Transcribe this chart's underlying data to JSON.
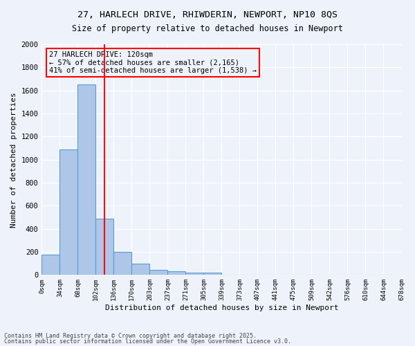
{
  "title_line1": "27, HARLECH DRIVE, RHIWDERIN, NEWPORT, NP10 8QS",
  "title_line2": "Size of property relative to detached houses in Newport",
  "xlabel": "Distribution of detached houses by size in Newport",
  "ylabel": "Number of detached properties",
  "bar_values": [
    175,
    1090,
    1650,
    490,
    200,
    100,
    45,
    35,
    20,
    20,
    5,
    0,
    0,
    0,
    0,
    0,
    0,
    0,
    0,
    0
  ],
  "bar_labels": [
    "0sqm",
    "34sqm",
    "68sqm",
    "102sqm",
    "136sqm",
    "170sqm",
    "203sqm",
    "237sqm",
    "271sqm",
    "305sqm",
    "339sqm",
    "373sqm",
    "407sqm",
    "441sqm",
    "475sqm",
    "509sqm",
    "542sqm",
    "576sqm",
    "610sqm",
    "644sqm",
    "678sqm"
  ],
  "bar_color": "#aec6e8",
  "bar_edgecolor": "#5b9bd5",
  "vline_x": 3.5,
  "vline_color": "red",
  "annotation_text": "27 HARLECH DRIVE: 120sqm\n← 57% of detached houses are smaller (2,165)\n41% of semi-detached houses are larger (1,538) →",
  "annotation_box_color": "red",
  "ylim": [
    0,
    2000
  ],
  "yticks": [
    0,
    200,
    400,
    600,
    800,
    1000,
    1200,
    1400,
    1600,
    1800,
    2000
  ],
  "footnote1": "Contains HM Land Registry data © Crown copyright and database right 2025.",
  "footnote2": "Contains public sector information licensed under the Open Government Licence v3.0.",
  "bg_color": "#eef3fb",
  "grid_color": "#ffffff"
}
